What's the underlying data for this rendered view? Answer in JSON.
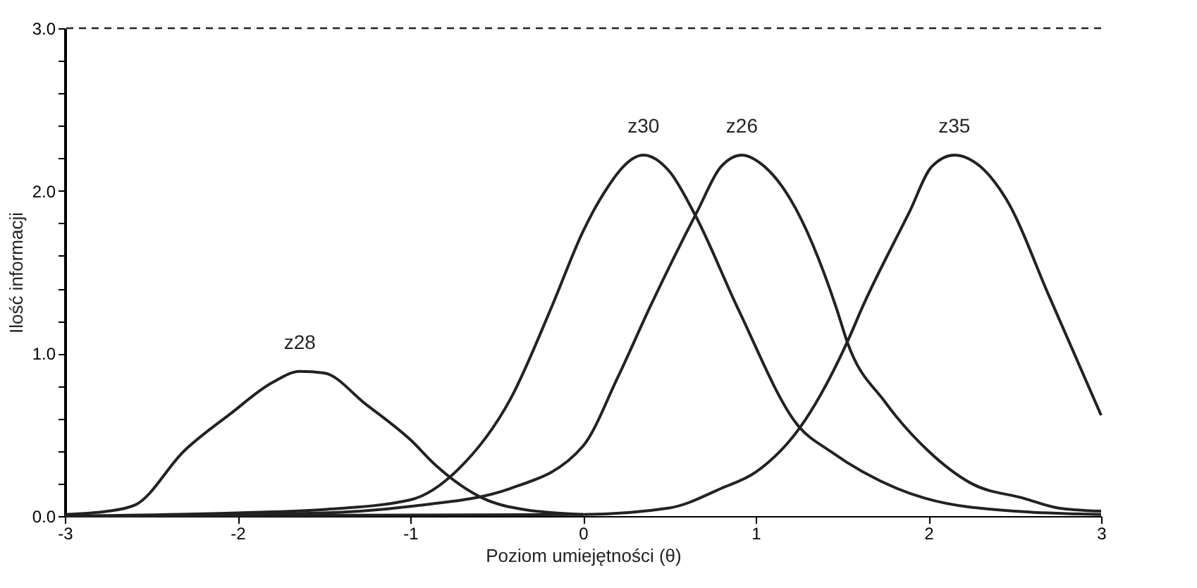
{
  "chart_data": {
    "type": "line",
    "xlabel": "Poziom umiejętności (θ)",
    "ylabel": "Ilość informacji",
    "xlim": [
      -3,
      3
    ],
    "ylim": [
      0,
      3
    ],
    "xticks": [
      -3,
      -2,
      -1,
      0,
      1,
      2,
      3
    ],
    "yticks": [
      {
        "value": 0,
        "label": "0.0"
      },
      {
        "value": 0.2,
        "label": null
      },
      {
        "value": 0.4,
        "label": null
      },
      {
        "value": 0.6,
        "label": null
      },
      {
        "value": 0.8,
        "label": null
      },
      {
        "value": 1,
        "label": "1.0"
      },
      {
        "value": 1.2,
        "label": null
      },
      {
        "value": 1.4,
        "label": null
      },
      {
        "value": 1.6,
        "label": null
      },
      {
        "value": 1.8,
        "label": null
      },
      {
        "value": 2,
        "label": "2.0"
      },
      {
        "value": 2.2,
        "label": null
      },
      {
        "value": 2.4,
        "label": null
      },
      {
        "value": 2.6,
        "label": null
      },
      {
        "value": 2.8,
        "label": null
      },
      {
        "value": 3,
        "label": "3.0"
      }
    ],
    "series": [
      {
        "name": "z28",
        "color": "#222222",
        "x": [
          -3,
          -2.75,
          -2.59,
          -2.31,
          -2.04,
          -1.8,
          -1.64,
          -1.5,
          -1.26,
          -1.0,
          -0.85,
          -0.58,
          -0.34,
          0
        ],
        "values": [
          0.01,
          0.03,
          0.07,
          0.4,
          0.63,
          0.82,
          0.89,
          0.88,
          0.69,
          0.47,
          0.31,
          0.11,
          0.04,
          0.01
        ]
      },
      {
        "name": "z30",
        "color": "#222222",
        "x": [
          -3,
          -2,
          -1.5,
          -1,
          -0.72,
          -0.42,
          -0.18,
          0,
          0.1,
          0.35,
          0.5,
          0.65,
          0.9,
          1.25,
          1.43,
          1.98,
          2.5,
          3
        ],
        "values": [
          0.0,
          0.02,
          0.04,
          0.1,
          0.29,
          0.72,
          1.29,
          1.75,
          1.95,
          2.22,
          2.12,
          1.85,
          1.27,
          0.55,
          0.4,
          0.11,
          0.03,
          0.01
        ]
      },
      {
        "name": "z26",
        "color": "#222222",
        "x": [
          -3,
          -1.5,
          -1,
          -0.42,
          0,
          0.2,
          0.39,
          0.66,
          0.8,
          0.92,
          1.05,
          1.2,
          1.47,
          1.53,
          1.75,
          2,
          2.25,
          2.55,
          2.75,
          3
        ],
        "values": [
          0.0,
          0.02,
          0.06,
          0.17,
          0.43,
          0.85,
          1.29,
          1.87,
          2.15,
          2.22,
          2.15,
          1.95,
          1.27,
          1.07,
          0.7,
          0.4,
          0.2,
          0.11,
          0.05,
          0.03
        ]
      },
      {
        "name": "z35",
        "color": "#222222",
        "x": [
          -3,
          0,
          0.5,
          0.8,
          1.0,
          1.26,
          1.53,
          1.62,
          1.89,
          2.02,
          2.15,
          2.3,
          2.45,
          2.7,
          3
        ],
        "values": [
          0.0,
          0.01,
          0.05,
          0.17,
          0.27,
          0.55,
          1.07,
          1.29,
          1.87,
          2.15,
          2.22,
          2.15,
          1.95,
          1.35,
          0.62
        ]
      }
    ],
    "ref_lines": [
      {
        "axis": "y",
        "value": 3,
        "line_style": "dashed",
        "color": "#222222"
      }
    ]
  }
}
